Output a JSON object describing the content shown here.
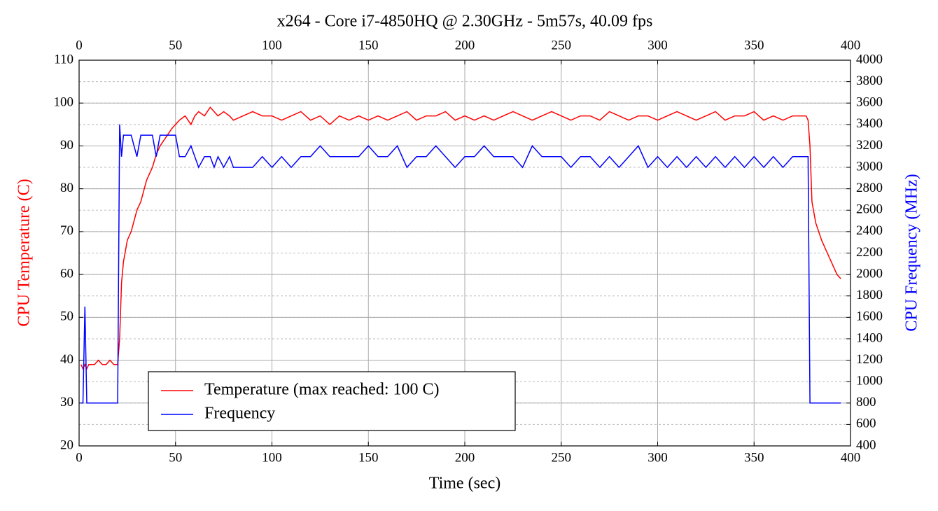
{
  "chart_data": {
    "type": "line",
    "title": "x264 - Core i7-4850HQ @ 2.30GHz - 5m57s, 40.09 fps",
    "xlabel": "Time (sec)",
    "ylabel": "CPU Temperature (C)",
    "y2label": "CPU Frequency (MHz)",
    "ylabel_color": "#ff0000",
    "y2label_color": "#0000ff",
    "xlim": [
      0,
      400
    ],
    "xticks": [
      0,
      50,
      100,
      150,
      200,
      250,
      300,
      350,
      400
    ],
    "ylim": [
      20,
      110
    ],
    "yticks": [
      20,
      30,
      40,
      50,
      60,
      70,
      80,
      90,
      100,
      110
    ],
    "y2lim": [
      400,
      4000
    ],
    "y2ticks": [
      400,
      600,
      800,
      1000,
      1200,
      1400,
      1600,
      1800,
      2000,
      2200,
      2400,
      2600,
      2800,
      3000,
      3200,
      3400,
      3600,
      3800,
      4000
    ],
    "grid": true,
    "legend": "lower left",
    "x": [
      1,
      2,
      3,
      4,
      5,
      6,
      8,
      10,
      12,
      14,
      16,
      18,
      20,
      21,
      22,
      23,
      25,
      27,
      30,
      32,
      35,
      38,
      40,
      42,
      45,
      48,
      50,
      52,
      55,
      58,
      60,
      62,
      65,
      68,
      70,
      72,
      75,
      78,
      80,
      85,
      90,
      95,
      100,
      105,
      110,
      115,
      120,
      125,
      130,
      135,
      140,
      145,
      150,
      155,
      160,
      165,
      170,
      175,
      180,
      185,
      190,
      195,
      200,
      205,
      210,
      215,
      220,
      225,
      230,
      235,
      240,
      245,
      250,
      255,
      260,
      265,
      270,
      275,
      280,
      285,
      290,
      295,
      300,
      305,
      310,
      315,
      320,
      325,
      330,
      335,
      340,
      345,
      350,
      355,
      360,
      365,
      370,
      375,
      377,
      378,
      379,
      380,
      382,
      385,
      388,
      391,
      393,
      395
    ],
    "series": [
      {
        "name": "Temperature (max reached: 100 C)",
        "color": "#ff0000",
        "axis": "y",
        "values": [
          39,
          38,
          39,
          38,
          39,
          39,
          39,
          40,
          39,
          39,
          40,
          39,
          39,
          45,
          58,
          63,
          68,
          70,
          75,
          77,
          82,
          85,
          88,
          90,
          92,
          94,
          95,
          96,
          97,
          95,
          97,
          98,
          97,
          99,
          98,
          97,
          98,
          97,
          96,
          97,
          98,
          97,
          97,
          96,
          97,
          98,
          96,
          97,
          95,
          97,
          96,
          97,
          96,
          97,
          96,
          97,
          98,
          96,
          97,
          97,
          98,
          96,
          97,
          96,
          97,
          96,
          97,
          98,
          97,
          96,
          97,
          98,
          97,
          96,
          97,
          97,
          96,
          98,
          97,
          96,
          97,
          97,
          96,
          97,
          98,
          97,
          96,
          97,
          98,
          96,
          97,
          97,
          98,
          96,
          97,
          96,
          97,
          97,
          97,
          96,
          90,
          77,
          72,
          68,
          65,
          62,
          60,
          59
        ]
      },
      {
        "name": "Frequency",
        "color": "#0000ff",
        "axis": "y2",
        "values": [
          800,
          800,
          1700,
          800,
          800,
          800,
          800,
          800,
          800,
          800,
          800,
          800,
          800,
          3400,
          3100,
          3300,
          3300,
          3300,
          3100,
          3300,
          3300,
          3300,
          3100,
          3300,
          3300,
          3300,
          3300,
          3100,
          3100,
          3200,
          3100,
          3000,
          3100,
          3100,
          3000,
          3100,
          3000,
          3100,
          3000,
          3000,
          3000,
          3100,
          3000,
          3100,
          3000,
          3100,
          3100,
          3200,
          3100,
          3100,
          3100,
          3100,
          3200,
          3100,
          3100,
          3200,
          3000,
          3100,
          3100,
          3200,
          3100,
          3000,
          3100,
          3100,
          3200,
          3100,
          3100,
          3100,
          3000,
          3200,
          3100,
          3100,
          3100,
          3000,
          3100,
          3100,
          3000,
          3100,
          3000,
          3100,
          3200,
          3000,
          3100,
          3000,
          3100,
          3000,
          3100,
          3000,
          3100,
          3000,
          3100,
          3000,
          3100,
          3000,
          3100,
          3000,
          3100,
          3100,
          3100,
          3100,
          800,
          800,
          800,
          800,
          800,
          800,
          800,
          800
        ]
      }
    ]
  }
}
